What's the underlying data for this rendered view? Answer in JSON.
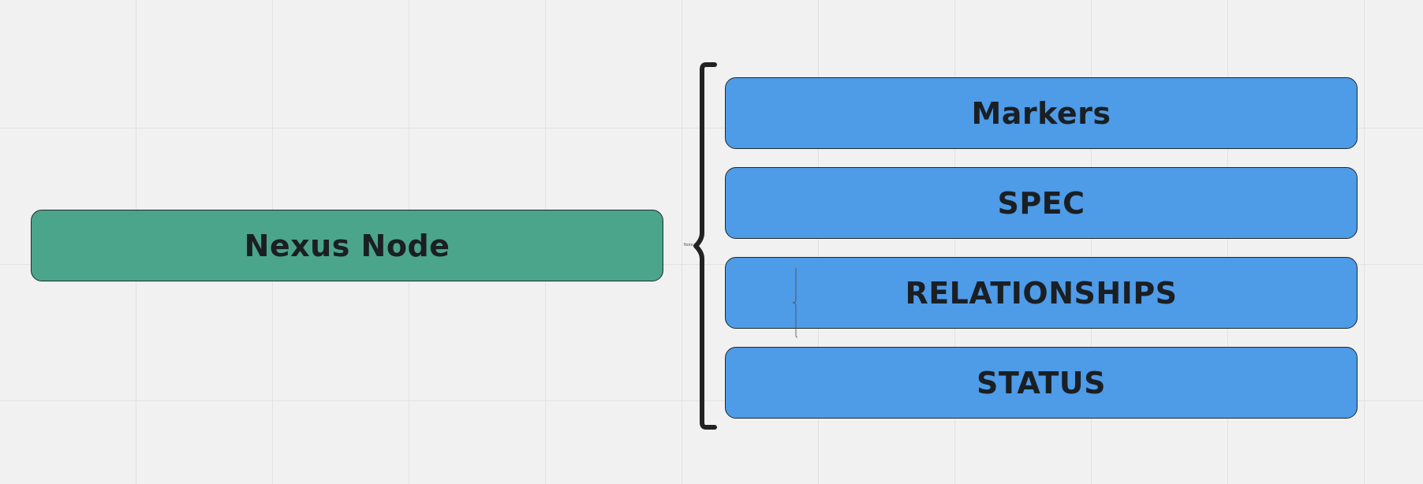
{
  "root": {
    "label": "Nexus Node",
    "color": "#4ba58b"
  },
  "brace": {
    "label": "Note",
    "color": "#222222"
  },
  "children": [
    {
      "label": "Markers",
      "color": "#4e9be8"
    },
    {
      "label": "SPEC",
      "color": "#4e9be8"
    },
    {
      "label": "RELATIONSHIPS",
      "color": "#4e9be8"
    },
    {
      "label": "STATUS",
      "color": "#4e9be8"
    }
  ]
}
